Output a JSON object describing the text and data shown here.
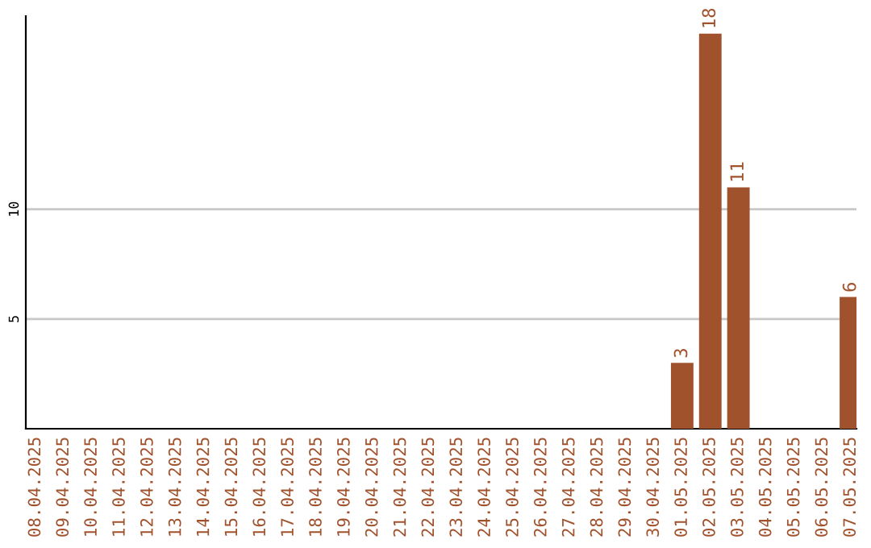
{
  "chart_data": {
    "type": "bar",
    "categories": [
      "08.04.2025",
      "09.04.2025",
      "10.04.2025",
      "11.04.2025",
      "12.04.2025",
      "13.04.2025",
      "14.04.2025",
      "15.04.2025",
      "16.04.2025",
      "17.04.2025",
      "18.04.2025",
      "19.04.2025",
      "20.04.2025",
      "21.04.2025",
      "22.04.2025",
      "23.04.2025",
      "24.04.2025",
      "25.04.2025",
      "26.04.2025",
      "27.04.2025",
      "28.04.2025",
      "29.04.2025",
      "30.04.2025",
      "01.05.2025",
      "02.05.2025",
      "03.05.2025",
      "04.05.2025",
      "05.05.2025",
      "06.05.2025",
      "07.05.2025"
    ],
    "values": [
      0,
      0,
      0,
      0,
      0,
      0,
      0,
      0,
      0,
      0,
      0,
      0,
      0,
      0,
      0,
      0,
      0,
      0,
      0,
      0,
      0,
      0,
      0,
      3,
      18,
      11,
      0,
      0,
      0,
      6
    ],
    "value_labels": [
      null,
      null,
      null,
      null,
      null,
      null,
      null,
      null,
      null,
      null,
      null,
      null,
      null,
      null,
      null,
      null,
      null,
      null,
      null,
      null,
      null,
      null,
      null,
      "3",
      "18",
      "11",
      null,
      null,
      null,
      "6"
    ],
    "color": "#a0522d",
    "ylim": [
      0,
      18.8
    ],
    "yticks": [
      5,
      10
    ],
    "grid": "y"
  }
}
